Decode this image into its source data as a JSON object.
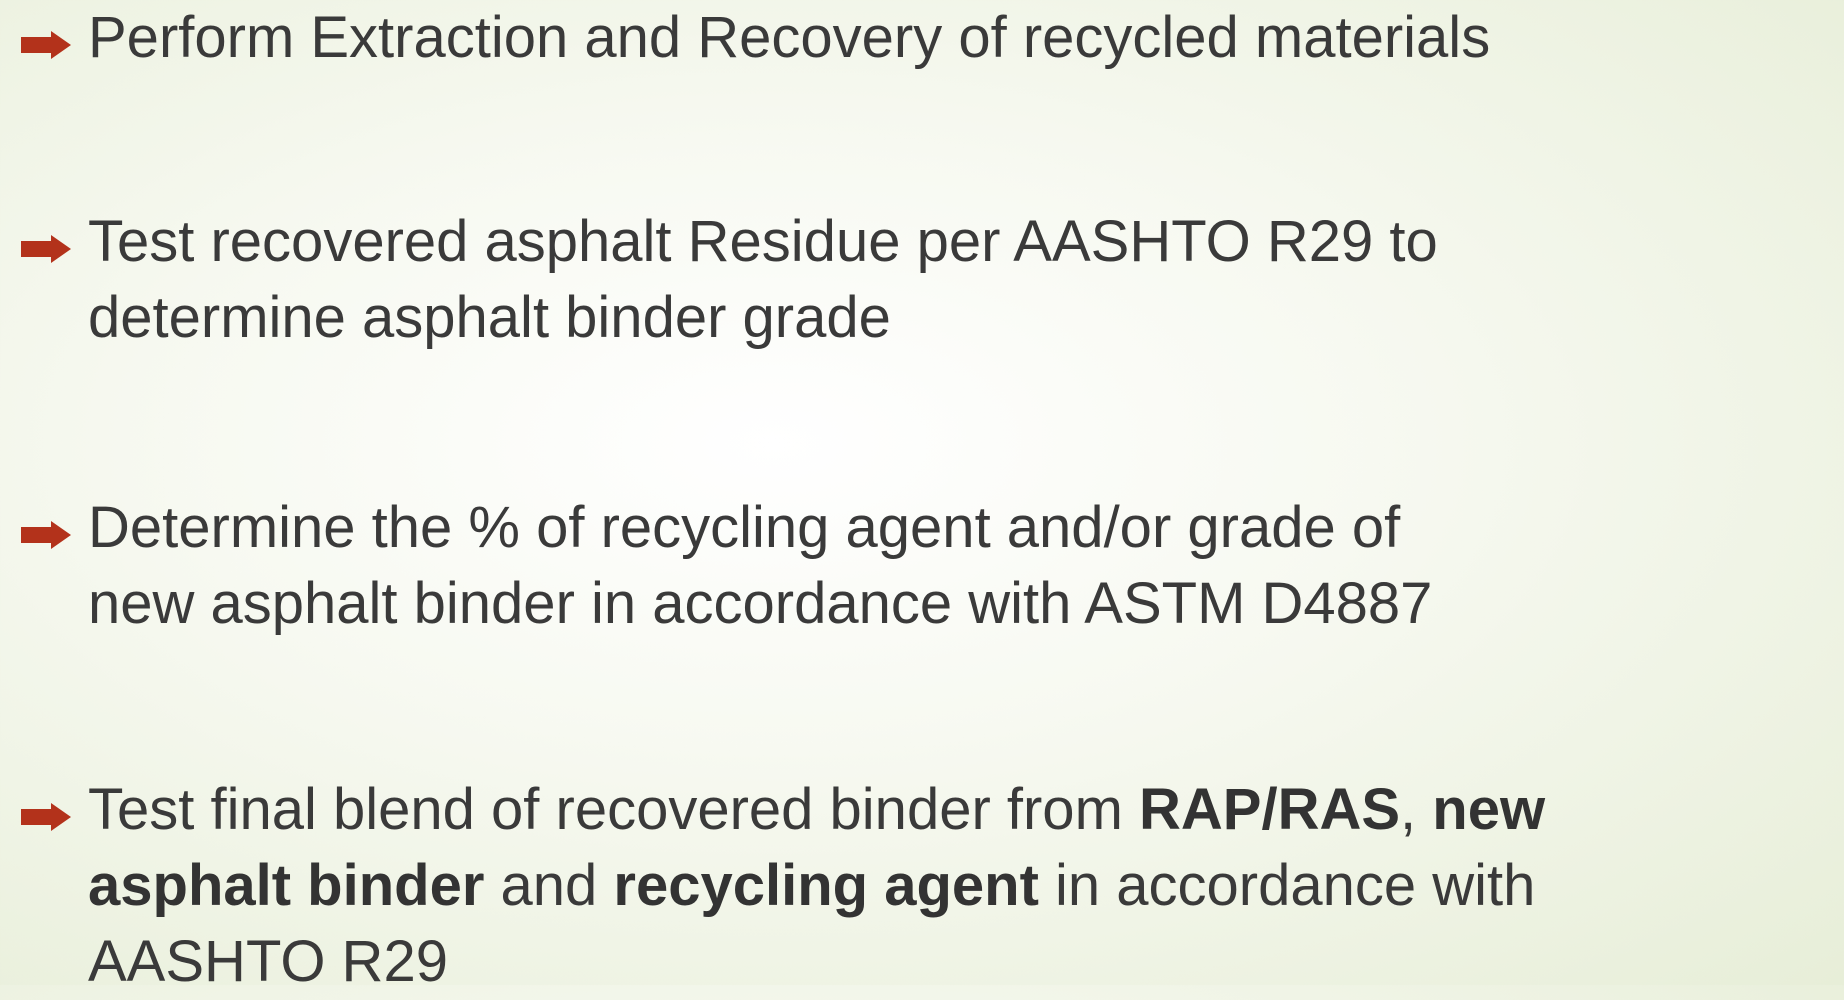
{
  "bullets": [
    {
      "lines": [
        [
          {
            "text": "Perform Extraction and Recovery of recycled materials"
          }
        ]
      ]
    },
    {
      "lines": [
        [
          {
            "text": "Test recovered asphalt Residue per AASHTO R29 to"
          }
        ],
        [
          {
            "text": "determine asphalt binder grade"
          }
        ]
      ]
    },
    {
      "lines": [
        [
          {
            "text": "Determine the % of recycling agent and/or grade of"
          }
        ],
        [
          {
            "text": "new asphalt binder in accordance with ASTM D4887"
          }
        ]
      ]
    },
    {
      "lines": [
        [
          {
            "text": "Test final blend of recovered binder from "
          },
          {
            "text": "RAP/RAS",
            "bold": true
          },
          {
            "text": ", "
          },
          {
            "text": "new",
            "bold": true
          }
        ],
        [
          {
            "text": "asphalt binder",
            "bold": true
          },
          {
            "text": " and "
          },
          {
            "text": "recycling agent",
            "bold": true
          },
          {
            "text": " in accordance with"
          }
        ],
        [
          {
            "text": "AASHTO R29"
          }
        ]
      ]
    }
  ]
}
